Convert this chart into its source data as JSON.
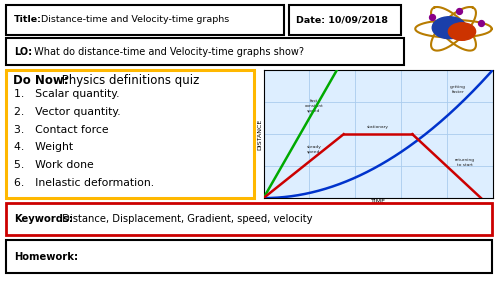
{
  "title_label": "Title:",
  "title_text": "Distance-time and Velocity-time graphs",
  "date_label": "Date: 10/09/2018",
  "lo_label": "LO:",
  "lo_text": " What do distance-time and Velocity-time graphs show?",
  "donow_label": "Do Now:",
  "donow_text": " Physics definitions quiz",
  "items": [
    "Scalar quantity.",
    "Vector quantity.",
    "Contact force",
    "Weight",
    "Work done",
    "Inelastic deformation."
  ],
  "keywords_label": "Keywords:",
  "keywords_text": " Distance, Displacement, Gradient, speed, velocity",
  "homework_label": "Homework:",
  "bg_color": "#ffffff",
  "box_color": "#000000",
  "donow_box_color": "#FFB800",
  "keywords_box_color": "#cc0000"
}
